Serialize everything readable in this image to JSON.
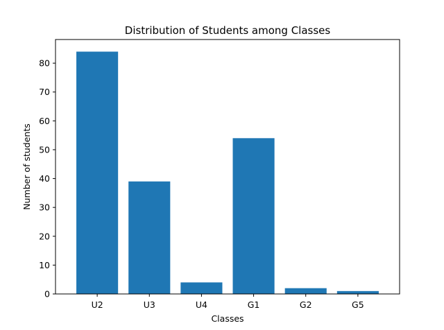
{
  "chart_data": {
    "type": "bar",
    "title": "Distribution of Students among Classes",
    "xlabel": "Classes",
    "ylabel": "Number of students",
    "categories": [
      "U2",
      "U3",
      "U4",
      "G1",
      "G2",
      "G5"
    ],
    "values": [
      84,
      39,
      4,
      54,
      2,
      1
    ],
    "ylim": [
      0,
      88.2
    ],
    "yticks": [
      0,
      10,
      20,
      30,
      40,
      50,
      60,
      70,
      80
    ],
    "grid": false,
    "legend": "none",
    "bar_color": "#1f77b4"
  }
}
